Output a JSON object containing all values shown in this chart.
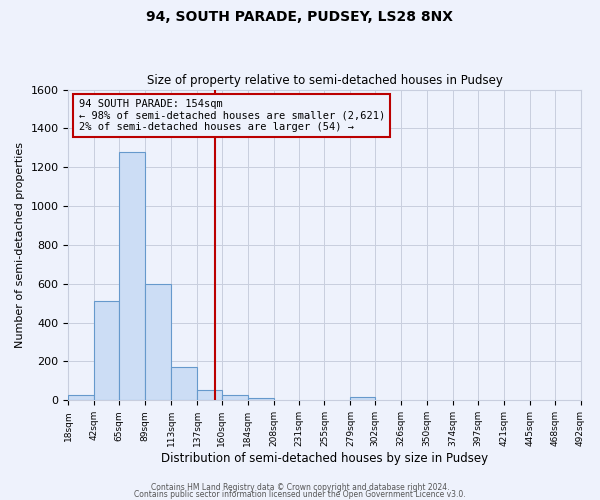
{
  "title": "94, SOUTH PARADE, PUDSEY, LS28 8NX",
  "subtitle": "Size of property relative to semi-detached houses in Pudsey",
  "xlabel": "Distribution of semi-detached houses by size in Pudsey",
  "ylabel": "Number of semi-detached properties",
  "bin_edges": [
    18,
    42,
    65,
    89,
    113,
    137,
    160,
    184,
    208,
    231,
    255,
    279,
    302,
    326,
    350,
    374,
    397,
    421,
    445,
    468,
    492
  ],
  "bin_counts": [
    25,
    510,
    1280,
    600,
    170,
    55,
    25,
    10,
    0,
    0,
    0,
    15,
    0,
    0,
    0,
    0,
    0,
    0,
    0,
    0
  ],
  "property_size": 154,
  "annotation_title": "94 SOUTH PARADE: 154sqm",
  "annotation_line1": "← 98% of semi-detached houses are smaller (2,621)",
  "annotation_line2": "2% of semi-detached houses are larger (54) →",
  "bar_facecolor": "#ccddf5",
  "bar_edgecolor": "#6699cc",
  "vline_color": "#bb0000",
  "annotation_box_edgecolor": "#bb0000",
  "background_color": "#eef2fc",
  "grid_color": "#c8cede",
  "ylim": [
    0,
    1600
  ],
  "yticks": [
    0,
    200,
    400,
    600,
    800,
    1000,
    1200,
    1400,
    1600
  ],
  "footer1": "Contains HM Land Registry data © Crown copyright and database right 2024.",
  "footer2": "Contains public sector information licensed under the Open Government Licence v3.0."
}
